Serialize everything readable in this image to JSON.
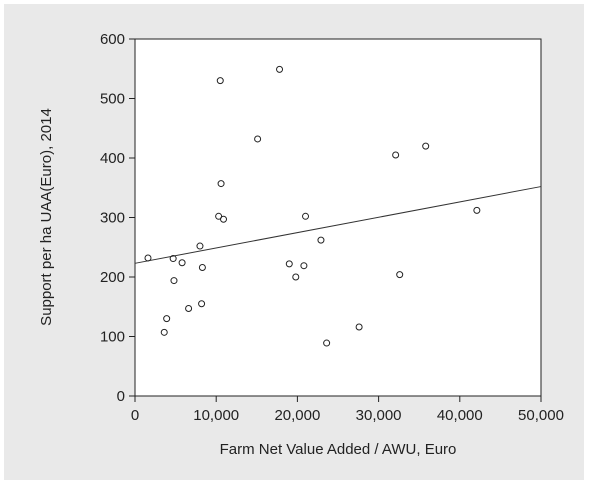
{
  "chart_data": {
    "type": "scatter",
    "title": "",
    "xlabel": "Farm Net Value Added / AWU, Euro",
    "ylabel": "Support per ha UAA(Euro), 2014",
    "xlim": [
      0,
      50000
    ],
    "ylim": [
      0,
      600
    ],
    "xticks": [
      0,
      10000,
      20000,
      30000,
      40000,
      50000
    ],
    "xtick_labels": [
      "0",
      "10,000",
      "20,000",
      "30,000",
      "40,000",
      "50,000"
    ],
    "yticks": [
      0,
      100,
      200,
      300,
      400,
      500,
      600
    ],
    "ytick_labels": [
      "0",
      "100",
      "200",
      "300",
      "400",
      "500",
      "600"
    ],
    "grid": false,
    "legend": "none",
    "points": [
      {
        "x": 1600,
        "y": 232
      },
      {
        "x": 3600,
        "y": 107
      },
      {
        "x": 3900,
        "y": 130
      },
      {
        "x": 4700,
        "y": 231
      },
      {
        "x": 4800,
        "y": 194
      },
      {
        "x": 5800,
        "y": 224
      },
      {
        "x": 6600,
        "y": 147
      },
      {
        "x": 8000,
        "y": 252
      },
      {
        "x": 8200,
        "y": 155
      },
      {
        "x": 8300,
        "y": 216
      },
      {
        "x": 10300,
        "y": 302
      },
      {
        "x": 10500,
        "y": 530
      },
      {
        "x": 10600,
        "y": 357
      },
      {
        "x": 10900,
        "y": 297
      },
      {
        "x": 15100,
        "y": 432
      },
      {
        "x": 17800,
        "y": 549
      },
      {
        "x": 19000,
        "y": 222
      },
      {
        "x": 19800,
        "y": 200
      },
      {
        "x": 20800,
        "y": 219
      },
      {
        "x": 21000,
        "y": 302
      },
      {
        "x": 22900,
        "y": 262
      },
      {
        "x": 23600,
        "y": 89
      },
      {
        "x": 27600,
        "y": 116
      },
      {
        "x": 32100,
        "y": 405
      },
      {
        "x": 32600,
        "y": 204
      },
      {
        "x": 35800,
        "y": 420
      },
      {
        "x": 42100,
        "y": 312
      }
    ],
    "trendline": {
      "x": [
        0,
        50000
      ],
      "y": [
        223,
        352
      ]
    },
    "colors": {
      "marker": "#222222",
      "line": "#333333",
      "axis": "#222222",
      "frame": "#e9e9e9",
      "plot_bg": "#ffffff"
    }
  }
}
